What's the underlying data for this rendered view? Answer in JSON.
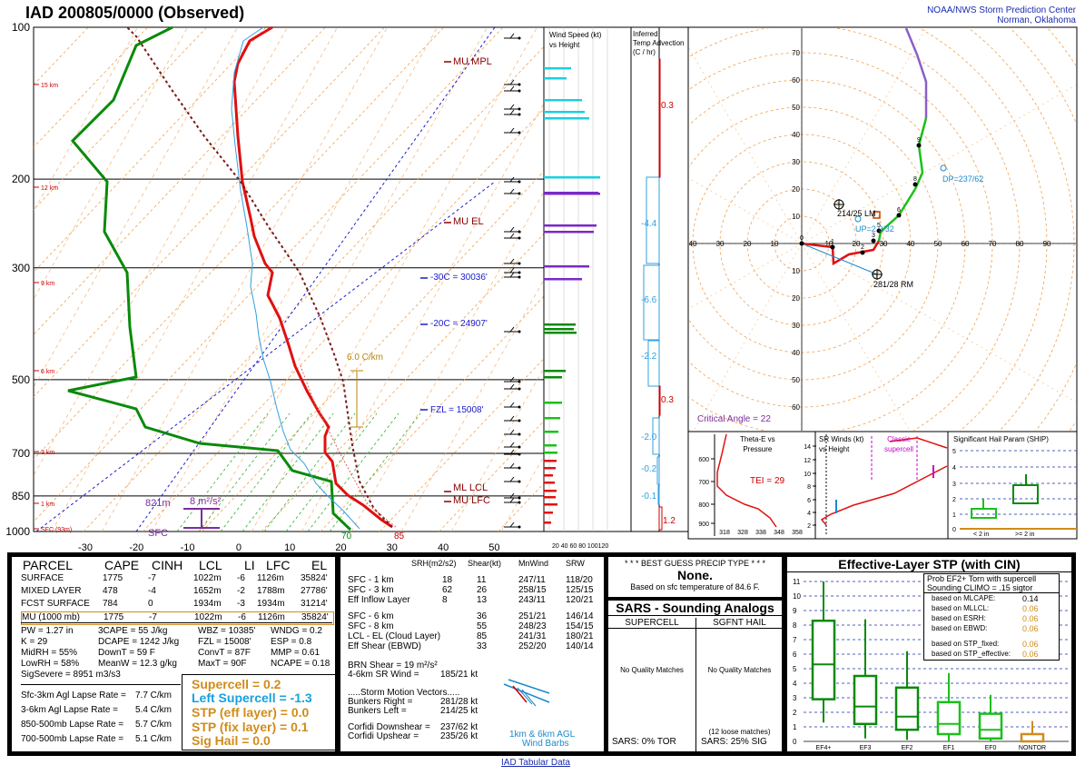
{
  "header": {
    "title": "IAD   200805/0000  (Observed)",
    "org_line1": "NOAA/NWS Storm Prediction Center",
    "org_line2": "Norman, Oklahoma",
    "footer_link": "IAD Tabular Data"
  },
  "skewt": {
    "pressure_labels": [
      "100",
      "200",
      "300",
      "500",
      "700",
      "850",
      "1000"
    ],
    "temp_labels": [
      "-30",
      "-20",
      "-10",
      "0",
      "10",
      "20",
      "30",
      "40",
      "50"
    ],
    "height_labels": [
      "15 km",
      "12 km",
      "9 km",
      "6 km",
      "3 km",
      "1 km",
      "SFC (93m)"
    ],
    "annotations": {
      "mu_mpl": "MU MPL",
      "mu_el": "MU EL",
      "minus30": "-30C = 30036'",
      "minus20": "-20C = 24907'",
      "fzl": "FZL = 15008'",
      "ml_lcl": "ML LCL",
      "mu_lfc": "MU LFC",
      "lapse": "6.0 C/km",
      "dcape_height": "821m",
      "dcape_val": "8 m²/s²",
      "sfc": "SFC",
      "t70": "70",
      "t85": "85"
    }
  },
  "wind_panel": {
    "title1": "Wind Speed (kt)",
    "title2": "vs Height",
    "axis": "20 40 60 80 100120"
  },
  "adv_panel": {
    "title1": "Inferred",
    "title2": "Temp Advection",
    "title3": "(C / hr)",
    "values": [
      "0.3",
      "-4.4",
      "-6.6",
      "-2.2",
      "0.3",
      "-2.0",
      "-0.2",
      "-0.1",
      "1.2"
    ]
  },
  "hodograph": {
    "rings_labels": [
      "10",
      "20",
      "30",
      "40",
      "50",
      "60",
      "70",
      "80"
    ],
    "lm_label": "214/25 LM",
    "rm_label": "281/28 RM",
    "dp_label": "DP=237/62",
    "up_label": "UP=2 9/32",
    "critical_angle": "Critical Angle = 22",
    "km_marks": [
      "0",
      "1",
      "2",
      "3",
      "5",
      "6",
      "8",
      "9"
    ]
  },
  "theta_panel": {
    "title1": "Theta-E vs",
    "title2": "Pressure",
    "tei": "TEI = 29",
    "y_labels": [
      "600",
      "700",
      "800",
      "900"
    ],
    "x_labels": [
      "318",
      "328",
      "338",
      "348",
      "358"
    ]
  },
  "srwind_panel": {
    "title1": "SR Winds (kt)",
    "title2": "vs Height",
    "classic1": "Classic",
    "classic2": "supercell",
    "y_labels": [
      "14",
      "12",
      "10",
      "8",
      "6",
      "4",
      "2"
    ]
  },
  "ship_panel": {
    "title": "Significant Hail Param (SHIP)",
    "y_labels": [
      "5",
      "4",
      "3",
      "2",
      "1",
      "0"
    ],
    "x_labels": [
      "< 2 in",
      ">= 2 in"
    ]
  },
  "parcels": {
    "headers": [
      "PARCEL",
      "CAPE",
      "CINH",
      "LCL",
      "LI",
      "LFC",
      "EL"
    ],
    "rows": [
      [
        "SURFACE",
        "1775",
        "-7",
        "1022m",
        "-6",
        "1126m",
        "35824'"
      ],
      [
        "MIXED LAYER",
        "478",
        "-4",
        "1652m",
        "-2",
        "1788m",
        "27786'"
      ],
      [
        "FCST SURFACE",
        "784",
        "0",
        "1934m",
        "-3",
        "1934m",
        "31214'"
      ],
      [
        "MU   (1000 mb)",
        "1775",
        "-7",
        "1022m",
        "-6",
        "1126m",
        "35824'"
      ]
    ]
  },
  "thermo": {
    "col1": [
      "PW = 1.27 in",
      "K = 29",
      "MidRH = 55%",
      "LowRH = 58%",
      "SigSevere = 8951 m3/s3"
    ],
    "col2": [
      "3CAPE = 55 J/kg",
      "DCAPE = 1242 J/kg",
      "DownT = 59 F",
      "MeanW = 12.3 g/kg"
    ],
    "col3": [
      "WBZ = 10385'",
      "FZL = 15008'",
      "ConvT = 87F",
      "MaxT = 90F"
    ],
    "col4": [
      "WNDG = 0.2",
      "ESP = 0.8",
      "MMP = 0.61",
      "NCAPE = 0.18"
    ],
    "lapse": [
      [
        "Sfc-3km Agl Lapse Rate =",
        "7.7 C/km"
      ],
      [
        "3-6km Agl Lapse Rate =",
        "5.4 C/km"
      ],
      [
        "850-500mb Lapse Rate =",
        "5.7 C/km"
      ],
      [
        "700-500mb Lapse Rate =",
        "5.1 C/km"
      ]
    ],
    "indices": {
      "supercell": "Supercell = 0.2",
      "left_supercell": "Left Supercell = -1.3",
      "stp_eff": "STP (eff layer) = 0.0",
      "stp_fix": "STP (fix layer) = 0.1",
      "sig_hail": "Sig Hail = 0.0"
    }
  },
  "kinematics": {
    "headers": [
      "SRH(m2/s2)",
      "Shear(kt)",
      "MnWind",
      "SRW"
    ],
    "rows": [
      [
        "SFC - 1 km",
        "18",
        "11",
        "247/11",
        "118/20"
      ],
      [
        "SFC - 3 km",
        "62",
        "26",
        "258/15",
        "125/15"
      ],
      [
        "Eff Inflow Layer",
        "8",
        "13",
        "243/11",
        "120/21"
      ],
      [
        "SFC - 6 km",
        "",
        "36",
        "251/21",
        "146/14"
      ],
      [
        "SFC - 8 km",
        "",
        "55",
        "248/23",
        "154/15"
      ],
      [
        "LCL - EL (Cloud Layer)",
        "",
        "85",
        "241/31",
        "180/21"
      ],
      [
        "Eff Shear (EBWD)",
        "",
        "33",
        "252/20",
        "140/14"
      ]
    ],
    "brn": "BRN Shear =  19 m²/s²",
    "sr46_label": "4-6km SR Wind =",
    "sr46_val": "185/21 kt",
    "storm_motion": ".....Storm Motion Vectors.....",
    "bunkers_right_label": "Bunkers Right =",
    "bunkers_right_val": "281/28 kt",
    "bunkers_left_label": "Bunkers Left =",
    "bunkers_left_val": "214/25 kt",
    "corfidi_down_label": "Corfidi Downshear =",
    "corfidi_down_val": "237/62 kt",
    "corfidi_up_label": "Corfidi Upshear =",
    "corfidi_up_val": "235/26 kt",
    "barbs1": "1km & 6km AGL",
    "barbs2": "Wind Barbs"
  },
  "precip": {
    "title": "* * * BEST GUESS PRECIP TYPE * * *",
    "value": "None.",
    "note": "Based on sfc temperature of 84.6 F."
  },
  "sars": {
    "title": "SARS - Sounding Analogs",
    "supercell": "SUPERCELL",
    "sgfnt_hail": "SGFNT HAIL",
    "no_match1": "No Quality Matches",
    "no_match2": "No Quality Matches",
    "loose": "(12 loose matches)",
    "tor": "SARS:  0% TOR",
    "sig": "SARS:  25% SIG"
  },
  "stp_panel": {
    "title": "Effective-Layer STP (with CIN)",
    "y_labels": [
      "11",
      "10",
      "9",
      "8",
      "7",
      "6",
      "5",
      "4",
      "3",
      "2",
      "1",
      "0"
    ],
    "x_labels": [
      "EF4+",
      "EF3",
      "EF2",
      "EF1",
      "EF0",
      "NONTOR"
    ],
    "prob_line1": "Prob EF2+ Torn with supercell",
    "prob_line2": "Sounding CLIMO = .15 sigtor",
    "based": [
      [
        "based on MLCAPE:",
        "0.14"
      ],
      [
        "based on MLLCL:",
        "0.06"
      ],
      [
        "based on ESRH:",
        "0.06"
      ],
      [
        "based on EBWD:",
        "0.06"
      ],
      [
        "based on STP_fixed:",
        "0.06"
      ],
      [
        "based on STP_effective:",
        "0.06"
      ]
    ]
  },
  "chart_data": [
    {
      "type": "line",
      "title": "Skew-T log-P",
      "xlabel": "Temperature (C)",
      "ylabel": "Pressure (mb)",
      "xlim": [
        -30,
        50
      ],
      "ylim": [
        1000,
        100
      ],
      "series": [
        {
          "name": "Temperature",
          "pressure": [
            1000,
            950,
            925,
            900,
            850,
            800,
            750,
            700,
            650,
            600,
            550,
            500,
            450,
            400,
            350,
            300,
            250,
            200,
            150,
            100
          ],
          "temp": [
            30,
            27,
            24,
            21,
            18,
            15,
            12,
            11,
            8,
            4,
            0,
            -4,
            -8,
            -13,
            -19,
            -26,
            -33,
            -42,
            -53,
            -65
          ]
        },
        {
          "name": "Dewpoint",
          "pressure": [
            1000,
            950,
            900,
            850,
            800,
            750,
            700,
            650,
            600,
            550,
            500,
            450,
            400,
            350,
            300,
            250,
            200,
            150,
            100
          ],
          "temp": [
            22,
            20,
            16,
            13,
            10,
            9,
            7,
            3,
            1,
            -2,
            -7,
            -11,
            -16,
            -24,
            -35,
            -43,
            -52,
            -61,
            -74
          ]
        }
      ]
    },
    {
      "type": "line",
      "title": "Hodograph",
      "xlim": [
        -40,
        90
      ],
      "ylim": [
        -10,
        90
      ],
      "series": [
        {
          "name": "0-3km",
          "u": [
            0,
            10,
            18,
            22,
            28
          ],
          "v": [
            10,
            5,
            3,
            5,
            8
          ]
        },
        {
          "name": "3-6km",
          "u": [
            28,
            32,
            36
          ],
          "v": [
            8,
            15,
            18
          ]
        },
        {
          "name": "6-9km",
          "u": [
            36,
            40,
            44
          ],
          "v": [
            18,
            30,
            45
          ]
        },
        {
          "name": "9-12km",
          "u": [
            44,
            47,
            48,
            47,
            45,
            43
          ],
          "v": [
            45,
            55,
            65,
            72,
            80,
            88
          ]
        }
      ]
    },
    {
      "type": "bar",
      "title": "Effective-Layer STP (with CIN)",
      "categories": [
        "EF4+",
        "EF3",
        "EF2",
        "EF1",
        "EF0",
        "NONTOR"
      ],
      "box_median": [
        5.3,
        2.4,
        1.7,
        1.2,
        0.8,
        0.0
      ],
      "box_q1": [
        2.9,
        1.2,
        0.8,
        0.5,
        0.2,
        0.0
      ],
      "box_q3": [
        8.3,
        4.5,
        3.7,
        2.7,
        1.9,
        0.5
      ],
      "whisker_low": [
        1.3,
        0.2,
        0.1,
        0.0,
        0.0,
        0.0
      ],
      "whisker_high": [
        11.0,
        8.4,
        6.2,
        4.7,
        3.2,
        1.4
      ],
      "ylim": [
        0,
        11
      ]
    }
  ]
}
